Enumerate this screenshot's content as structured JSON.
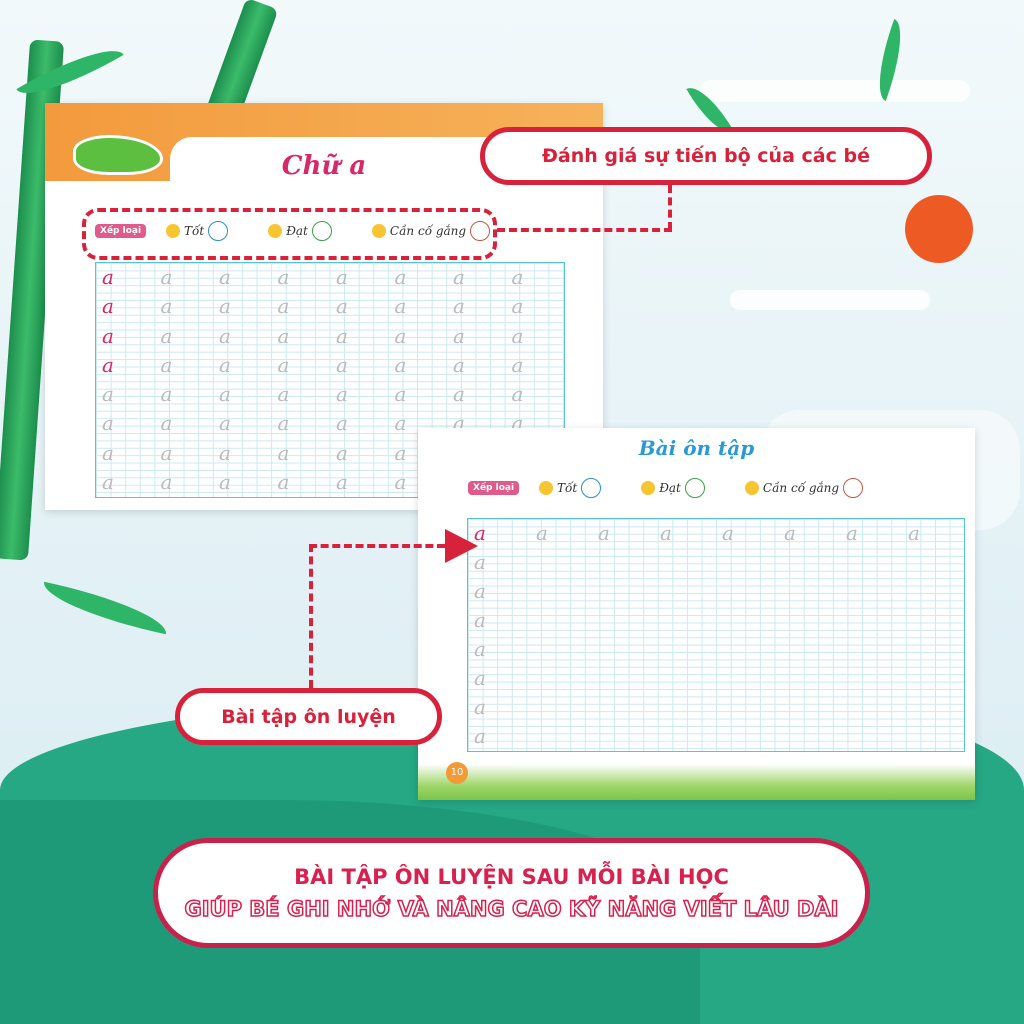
{
  "worksheet1": {
    "title": "Chữ a",
    "rating_label": "Xếp loại",
    "ratings": [
      "Tốt",
      "Đạt",
      "Cần cố gắng"
    ],
    "letter": "a"
  },
  "worksheet2": {
    "title": "Bài ôn tập",
    "rating_label": "Xếp loại",
    "ratings": [
      "Tốt",
      "Đạt",
      "Cần cố gắng"
    ],
    "letter": "a",
    "page_number": "10"
  },
  "callouts": {
    "progress": "Đánh giá sự tiến bộ của các bé",
    "practice": "Bài tập ôn luyện"
  },
  "banner": {
    "line1": "BÀI TẬP ÔN LUYỆN SAU MỖI BÀI HỌC",
    "line2": "GIÚP BÉ GHI NHỚ VÀ NÂNG CAO KỸ NĂNG VIẾT LÂU DÀI"
  },
  "colors": {
    "accent_red": "#d8213a",
    "title_pink": "#d6286b",
    "title_blue": "#2a9ad6",
    "sun": "#ee5a24",
    "hill": "#25a883"
  }
}
